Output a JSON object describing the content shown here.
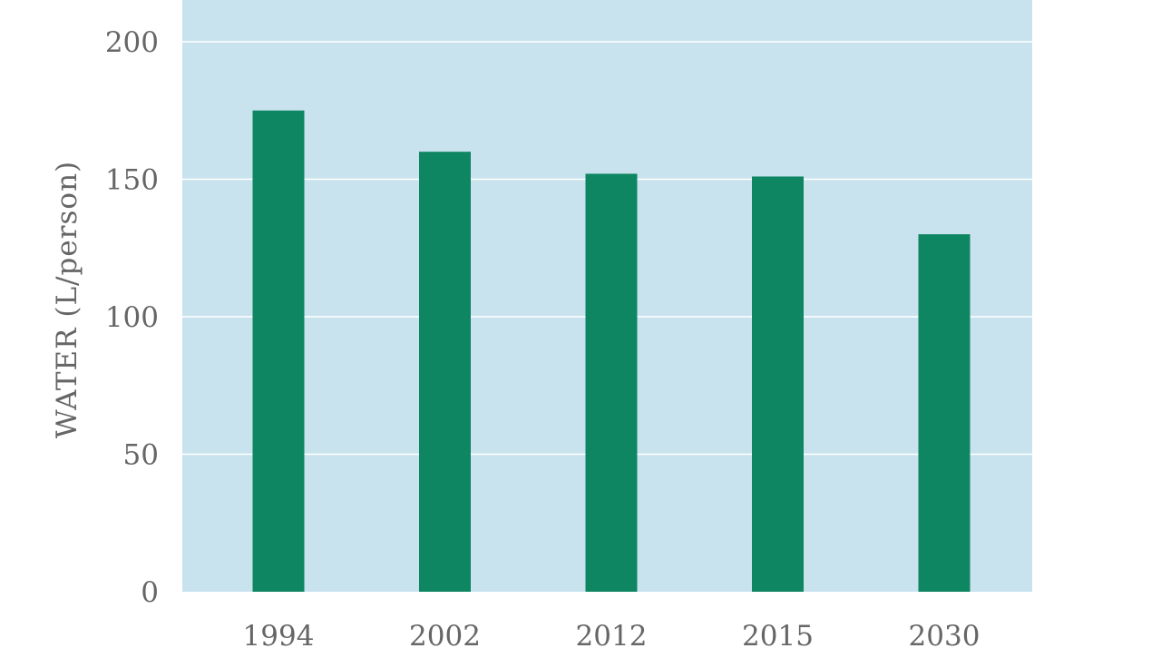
{
  "chart_data": {
    "type": "bar",
    "categories": [
      "1994",
      "2002",
      "2012",
      "2015",
      "2030"
    ],
    "values": [
      175,
      160,
      152,
      151,
      130
    ],
    "title": "",
    "xlabel": "",
    "ylabel": "WATER (L/person)",
    "ylim": [
      0,
      210
    ],
    "yticks": [
      0,
      50,
      100,
      150,
      200
    ],
    "grid": true,
    "legend": "none"
  },
  "colors": {
    "plot_background": "#c8e3ee",
    "bar": "#0e8661",
    "gridline": "#ffffff",
    "text": "#666666"
  }
}
